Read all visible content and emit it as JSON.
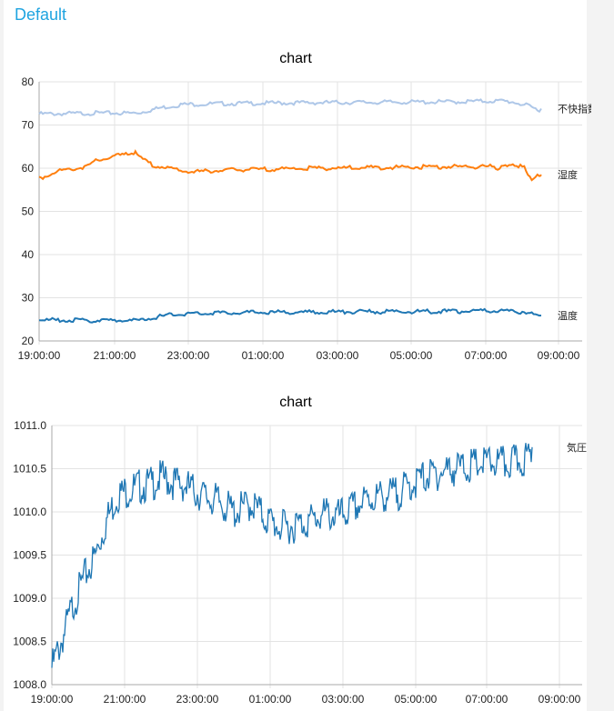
{
  "group": {
    "title": "Default"
  },
  "chart_data": [
    {
      "type": "line",
      "title": "chart",
      "x_ticks": [
        "19:00:00",
        "21:00:00",
        "23:00:00",
        "01:00:00",
        "03:00:00",
        "05:00:00",
        "07:00:00",
        "09:00:00"
      ],
      "ylim": [
        20,
        80
      ],
      "y_ticks": [
        "20",
        "30",
        "40",
        "50",
        "60",
        "70",
        "80"
      ],
      "grid": true,
      "series": [
        {
          "name": "不快指数",
          "color": "#aec7e8",
          "x": [
            0,
            1,
            1.5,
            2.4,
            2.6,
            3.2,
            3.8,
            5,
            7,
            9,
            11,
            12,
            12.3,
            12.6,
            12.9,
            13.2,
            13.3
          ],
          "y": [
            72.8,
            72.9,
            73.0,
            73.0,
            73.0,
            74.2,
            75.0,
            75.2,
            75.4,
            75.5,
            75.6,
            75.8,
            75.8,
            75.5,
            74.8,
            73.8,
            73.8
          ]
        },
        {
          "name": "湿度",
          "color": "#ff7f0e",
          "x": [
            0,
            0.1,
            0.4,
            0.7,
            1.0,
            1.3,
            1.5,
            1.8,
            2.1,
            2.4,
            2.5,
            2.55,
            2.7,
            3.0,
            3.4,
            3.7,
            4.1,
            4.5,
            5,
            7,
            9,
            11,
            12,
            12.15,
            12.3,
            12.5,
            12.7,
            12.85,
            12.95,
            13.05,
            13.15,
            13.25,
            13.3
          ],
          "y": [
            57.8,
            58.2,
            59.4,
            59.9,
            60.2,
            60.8,
            61.9,
            62.6,
            63.2,
            63.7,
            63.8,
            64.3,
            62.4,
            61.0,
            60.3,
            59.7,
            59.4,
            59.6,
            59.8,
            60.2,
            60.4,
            60.6,
            60.6,
            60.2,
            61.2,
            60.8,
            60.4,
            61.0,
            59.0,
            57.8,
            58.6,
            58.3,
            58.5
          ]
        },
        {
          "name": "温度",
          "color": "#1f77b4",
          "x": [
            0,
            1,
            1.5,
            2.4,
            2.6,
            3.0,
            3.5,
            4.0,
            5,
            7,
            8.2,
            9,
            11,
            12,
            12.5,
            12.8,
            13.0,
            13.2,
            13.3
          ],
          "y": [
            25.1,
            25.0,
            25.0,
            25.0,
            24.9,
            25.6,
            26.3,
            26.6,
            26.8,
            26.9,
            27.0,
            27.0,
            27.1,
            27.2,
            27.1,
            27.0,
            26.6,
            26.0,
            25.9
          ]
        }
      ]
    },
    {
      "type": "line",
      "title": "chart",
      "x_ticks": [
        "19:00:00",
        "21:00:00",
        "23:00:00",
        "01:00:00",
        "03:00:00",
        "05:00:00",
        "07:00:00",
        "09:00:00"
      ],
      "ylim": [
        1008.0,
        1011.0
      ],
      "y_ticks": [
        "1008.0",
        "1008.5",
        "1009.0",
        "1009.5",
        "1010.0",
        "1010.5",
        "1011.0"
      ],
      "grid": true,
      "series": [
        {
          "name": "気圧",
          "color": "#1f77b4",
          "x": [
            0,
            0.3,
            0.6,
            0.9,
            1.2,
            1.5,
            1.8,
            2.1,
            2.4,
            2.7,
            3.0,
            3.3,
            3.6,
            3.9,
            4.2,
            4.6,
            5.0,
            5.5,
            5.9,
            6.3,
            6.7,
            7.2,
            7.5,
            7.9,
            8.3,
            8.7,
            9.0,
            9.5,
            10.0,
            10.3,
            10.6,
            11.0,
            11.5,
            12.0,
            12.5,
            12.9,
            13.2
          ],
          "y": [
            1008.3,
            1008.65,
            1009.05,
            1009.35,
            1009.6,
            1010.0,
            1010.3,
            1010.35,
            1010.4,
            1010.42,
            1010.5,
            1010.45,
            1010.42,
            1010.35,
            1010.28,
            1010.22,
            1010.1,
            1010.2,
            1010.02,
            1009.92,
            1009.95,
            1010.02,
            1010.08,
            1010.05,
            1010.15,
            1010.25,
            1010.28,
            1010.32,
            1010.45,
            1010.52,
            1010.55,
            1010.6,
            1010.63,
            1010.68,
            1010.66,
            1010.7,
            1010.75
          ]
        }
      ]
    }
  ]
}
